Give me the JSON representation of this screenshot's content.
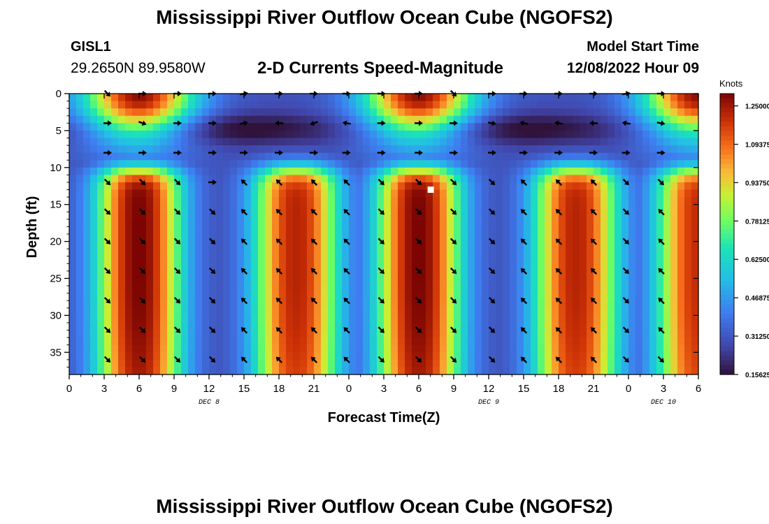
{
  "title": "Mississippi River Outflow Ocean Cube (NGOFS2)",
  "title_repeat": "Mississippi River Outflow Ocean Cube (NGOFS2)",
  "station": {
    "id": "GISL1",
    "coords": "29.2650N  89.9580W"
  },
  "model_start": {
    "label": "Model Start Time",
    "value": "12/08/2022 Hour 09"
  },
  "colors": {
    "marker": "#ffffff",
    "arrow": "#000000"
  },
  "chart_data": {
    "type": "heatmap",
    "title": "2-D Currents Speed-Magnitude",
    "xlabel": "Forecast Time(Z)",
    "ylabel": "Depth (ft)",
    "xlim": [
      0,
      54
    ],
    "ylim": [
      0,
      38
    ],
    "x_ticks": [
      0,
      3,
      6,
      9,
      12,
      15,
      18,
      21,
      24,
      27,
      30,
      33,
      36,
      39,
      42,
      45,
      48,
      51,
      54
    ],
    "x_tick_labels": [
      "0",
      "3",
      "6",
      "9",
      "12",
      "15",
      "18",
      "21",
      "0",
      "3",
      "6",
      "9",
      "12",
      "15",
      "18",
      "21",
      "0",
      "3",
      "6"
    ],
    "y_ticks": [
      0,
      5,
      10,
      15,
      20,
      25,
      30,
      35
    ],
    "y_tick_labels": [
      "0",
      "5",
      "10",
      "15",
      "20",
      "25",
      "30",
      "35"
    ],
    "date_labels": [
      {
        "x": 12,
        "text": "DEC 8"
      },
      {
        "x": 36,
        "text": "DEC 9"
      },
      {
        "x": 51,
        "text": "DEC 10"
      }
    ],
    "colorbar": {
      "title": "Knots",
      "min": 0.15625,
      "max": 1.3,
      "ticks": [
        1.25,
        1.09375,
        0.9375,
        0.78125,
        0.625,
        0.46875,
        0.3125,
        0.15625
      ],
      "tick_labels": [
        "1.250000",
        "1.093750",
        "0.937500",
        "0.781250",
        "0.625000",
        "0.468750",
        "0.312500",
        "0.156250"
      ]
    },
    "speed_field": {
      "upper_layer": {
        "depth_range": [
          0,
          8
        ],
        "peak_hours": [
          6,
          30,
          54
        ],
        "peak_depth": 0
      },
      "lower_layer": {
        "depth_range": [
          11,
          38
        ],
        "ebb_peaks": [
          {
            "hour": 6,
            "speed": 1.3
          },
          {
            "hour": 19.5,
            "speed": 1.22
          },
          {
            "hour": 30,
            "speed": 1.3
          },
          {
            "hour": 43.5,
            "speed": 1.22
          },
          {
            "hour": 54,
            "speed": 1.2
          }
        ]
      },
      "background_speed": 0.3
    },
    "vectors": {
      "hours": [
        3.3,
        6.3,
        9.3,
        12.3,
        15,
        18,
        21,
        23.8,
        26.8,
        30,
        33,
        36.3,
        39,
        42,
        45,
        47.8,
        50.8
      ],
      "rows": [
        {
          "depth": 0,
          "dirs": [
            45,
            0,
            0,
            0,
            -10,
            0,
            0,
            0,
            0,
            0,
            45,
            0,
            0,
            0,
            0,
            -10,
            0
          ]
        },
        {
          "depth": 4,
          "dirs": [
            0,
            20,
            0,
            0,
            -10,
            180,
            160,
            190,
            0,
            0,
            0,
            10,
            190,
            190,
            180,
            190,
            10
          ]
        },
        {
          "depth": 8,
          "dirs": [
            0,
            0,
            0,
            0,
            0,
            0,
            0,
            0,
            0,
            0,
            0,
            0,
            0,
            0,
            0,
            0,
            0
          ]
        },
        {
          "depth": 12,
          "dirs": [
            45,
            45,
            45,
            0,
            225,
            225,
            225,
            225,
            45,
            45,
            45,
            45,
            225,
            225,
            225,
            45,
            45
          ]
        },
        {
          "depth": 16,
          "dirs": [
            45,
            45,
            45,
            45,
            225,
            225,
            225,
            225,
            45,
            45,
            45,
            45,
            225,
            225,
            225,
            45,
            225
          ]
        },
        {
          "depth": 20,
          "dirs": [
            45,
            45,
            45,
            45,
            225,
            225,
            225,
            225,
            45,
            45,
            45,
            45,
            225,
            225,
            225,
            45,
            225
          ]
        },
        {
          "depth": 24,
          "dirs": [
            45,
            45,
            45,
            45,
            225,
            225,
            225,
            225,
            45,
            45,
            45,
            45,
            225,
            225,
            225,
            45,
            225
          ]
        },
        {
          "depth": 28,
          "dirs": [
            45,
            45,
            45,
            45,
            225,
            225,
            225,
            225,
            45,
            45,
            45,
            45,
            225,
            225,
            225,
            45,
            225
          ]
        },
        {
          "depth": 32,
          "dirs": [
            45,
            45,
            45,
            45,
            225,
            225,
            225,
            225,
            45,
            45,
            45,
            45,
            225,
            225,
            225,
            45,
            225
          ]
        },
        {
          "depth": 36,
          "dirs": [
            45,
            45,
            45,
            45,
            225,
            225,
            225,
            225,
            45,
            45,
            45,
            45,
            225,
            225,
            225,
            45,
            45
          ]
        }
      ]
    },
    "marker": {
      "hour": 31,
      "depth": 13
    }
  }
}
